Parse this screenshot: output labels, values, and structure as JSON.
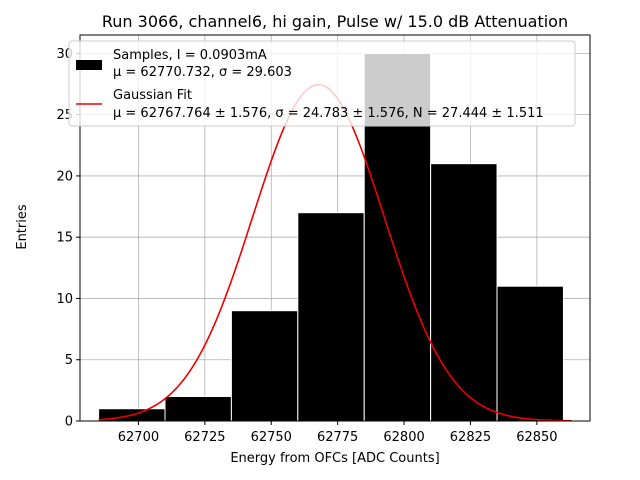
{
  "chart_data": {
    "type": "bar",
    "title": "Run 3066, channel6, hi gain, Pulse w/ 15.0 dB Attenuation",
    "xlabel": "Energy from OFCs [ADC Counts]",
    "ylabel": "Entries",
    "xlim": [
      62678,
      62870
    ],
    "ylim": [
      0,
      31.5
    ],
    "grid": true,
    "legend_position": "top-left",
    "xticks": [
      62700,
      62725,
      62750,
      62775,
      62800,
      62825,
      62850
    ],
    "yticks": [
      0,
      5,
      10,
      15,
      20,
      25,
      30
    ],
    "histogram": {
      "name": "Samples, I = 0.0903mA",
      "stats": "μ = 62770.732, σ = 29.603",
      "bin_edges": [
        62685,
        62710,
        62735,
        62760,
        62785,
        62810,
        62835,
        62860
      ],
      "bins": [
        {
          "x0": 62685,
          "x1": 62710,
          "value": 1
        },
        {
          "x0": 62710,
          "x1": 62735,
          "value": 2
        },
        {
          "x0": 62735,
          "x1": 62760,
          "value": 9
        },
        {
          "x0": 62760,
          "x1": 62785,
          "value": 17
        },
        {
          "x0": 62785,
          "x1": 62810,
          "value": 30
        },
        {
          "x0": 62810,
          "x1": 62835,
          "value": 21
        },
        {
          "x0": 62835,
          "x1": 62860,
          "value": 11
        }
      ],
      "color": "#000000",
      "edge_color": "#ffffff"
    },
    "fit": {
      "name": "Gaussian Fit",
      "stats": "μ = 62767.764 ± 1.576, σ = 24.783 ± 1.576, N = 27.444 ± 1.511",
      "mu": 62767.764,
      "sigma": 24.783,
      "amplitude": 27.444,
      "x_range": [
        62685,
        62863
      ],
      "color": "#ee0000"
    }
  }
}
